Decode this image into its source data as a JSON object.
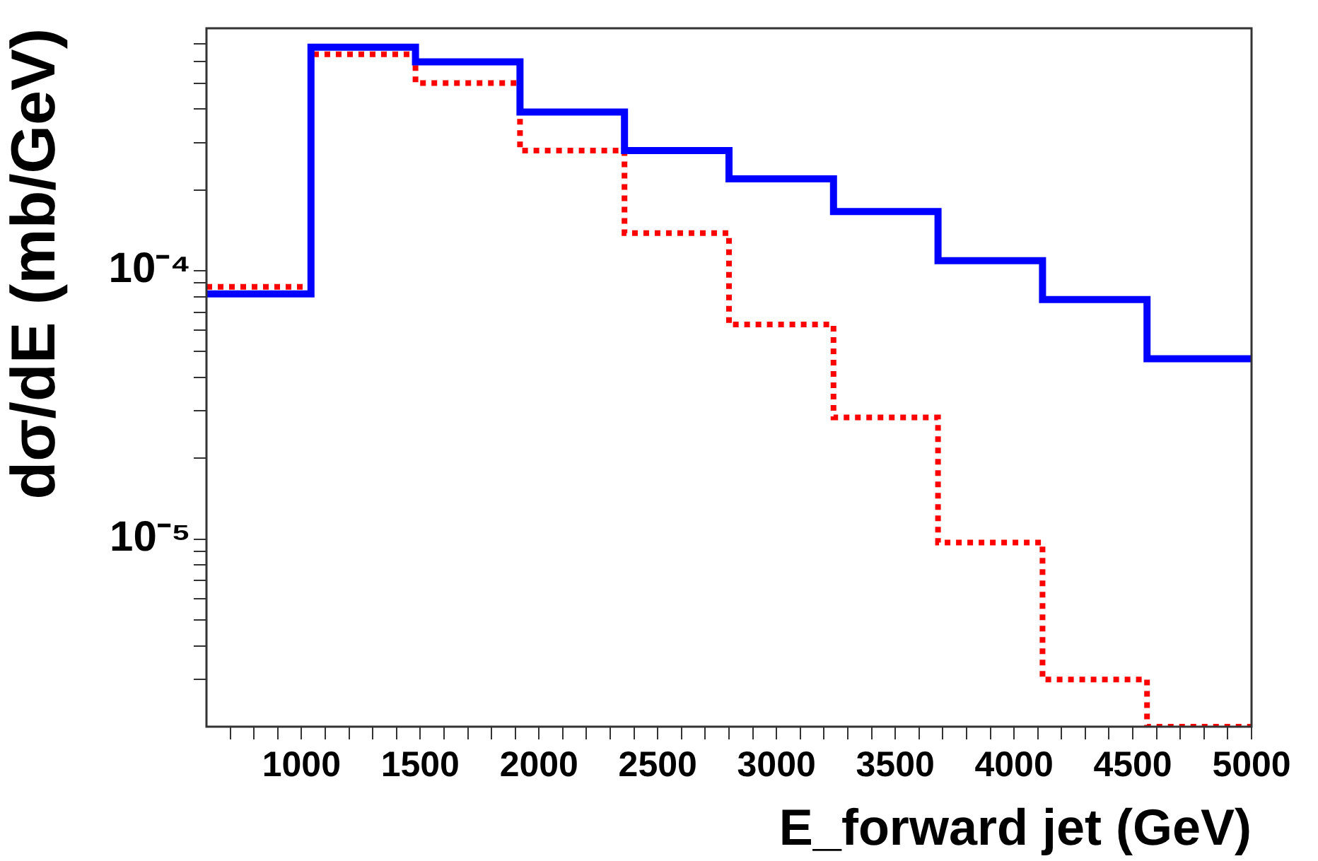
{
  "chart_data": {
    "type": "histogram",
    "xlabel": "E_forward jet (GeV)",
    "ylabel": "dσ/dE (mb/GeV)",
    "bins": [
      600,
      1040,
      1480,
      1920,
      2360,
      2800,
      3240,
      3680,
      4120,
      4560,
      5000
    ],
    "series": [
      {
        "color": "#0000ff",
        "line_style": "solid",
        "values": [
          8.2e-05,
          0.00068,
          0.0006,
          0.00039,
          0.00028,
          0.00022,
          0.000166,
          0.000109,
          7.8e-05,
          4.7e-05
        ]
      },
      {
        "color": "#ff0000",
        "line_style": "dotted",
        "values": [
          8.7e-05,
          0.00064,
          0.0005,
          0.00028,
          0.000138,
          6.3e-05,
          2.84e-05,
          9.7e-06,
          3e-06,
          2e-06
        ]
      }
    ],
    "log": "y",
    "grid": false,
    "legend": false,
    "xlim": [
      600,
      5000
    ],
    "xticks": [
      {
        "value": 700,
        "label": null
      },
      {
        "value": 800,
        "label": null
      },
      {
        "value": 900,
        "label": null
      },
      1000,
      {
        "value": 1100,
        "label": null
      },
      {
        "value": 1200,
        "label": null
      },
      {
        "value": 1300,
        "label": null
      },
      {
        "value": 1400,
        "label": null
      },
      1500,
      {
        "value": 1600,
        "label": null
      },
      {
        "value": 1700,
        "label": null
      },
      {
        "value": 1800,
        "label": null
      },
      {
        "value": 1900,
        "label": null
      },
      2000,
      {
        "value": 2100,
        "label": null
      },
      {
        "value": 2200,
        "label": null
      },
      {
        "value": 2300,
        "label": null
      },
      {
        "value": 2400,
        "label": null
      },
      2500,
      {
        "value": 2600,
        "label": null
      },
      {
        "value": 2700,
        "label": null
      },
      {
        "value": 2800,
        "label": null
      },
      {
        "value": 2900,
        "label": null
      },
      3000,
      {
        "value": 3100,
        "label": null
      },
      {
        "value": 3200,
        "label": null
      },
      {
        "value": 3300,
        "label": null
      },
      {
        "value": 3400,
        "label": null
      },
      3500,
      {
        "value": 3600,
        "label": null
      },
      {
        "value": 3700,
        "label": null
      },
      {
        "value": 3800,
        "label": null
      },
      {
        "value": 3900,
        "label": null
      },
      4000,
      {
        "value": 4100,
        "label": null
      },
      {
        "value": 4200,
        "label": null
      },
      {
        "value": 4300,
        "label": null
      },
      {
        "value": 4400,
        "label": null
      },
      4500,
      {
        "value": 4600,
        "label": null
      },
      {
        "value": 4700,
        "label": null
      },
      {
        "value": 4800,
        "label": null
      },
      {
        "value": 4900,
        "label": null
      },
      5000
    ],
    "ylim": [
      2e-06,
      0.0008
    ],
    "yticks": [
      {
        "value": 3e-06,
        "label": null
      },
      {
        "value": 4e-06,
        "label": null
      },
      {
        "value": 5e-06,
        "label": null
      },
      {
        "value": 6e-06,
        "label": null
      },
      {
        "value": 7e-06,
        "label": null
      },
      {
        "value": 8e-06,
        "label": null
      },
      {
        "value": 9e-06,
        "label": null
      },
      {
        "value": 1e-05,
        "label": "10⁻⁵"
      },
      {
        "value": 2e-05,
        "label": null
      },
      {
        "value": 3e-05,
        "label": null
      },
      {
        "value": 4e-05,
        "label": null
      },
      {
        "value": 5e-05,
        "label": null
      },
      {
        "value": 6e-05,
        "label": null
      },
      {
        "value": 7e-05,
        "label": null
      },
      {
        "value": 8e-05,
        "label": null
      },
      {
        "value": 9e-05,
        "label": null
      },
      {
        "value": 0.0001,
        "label": "10⁻⁴"
      },
      {
        "value": 0.0002,
        "label": null
      },
      {
        "value": 0.0003,
        "label": null
      },
      {
        "value": 0.0004,
        "label": null
      },
      {
        "value": 0.0005,
        "label": null
      },
      {
        "value": 0.0006,
        "label": null
      },
      {
        "value": 0.0007,
        "label": null
      }
    ]
  }
}
